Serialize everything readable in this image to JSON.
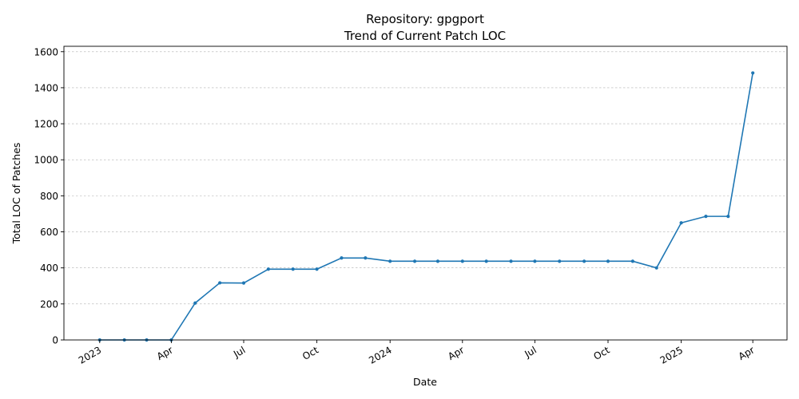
{
  "chart_data": {
    "type": "line",
    "title": "Repository: gpgport",
    "subtitle": "Trend of Current Patch LOC",
    "xlabel": "Date",
    "ylabel": "Total LOC of Patches",
    "x_ticks": [
      {
        "date": "2023-01-01",
        "label": "2023"
      },
      {
        "date": "2023-04-01",
        "label": "Apr"
      },
      {
        "date": "2023-07-01",
        "label": "Jul"
      },
      {
        "date": "2023-10-01",
        "label": "Oct"
      },
      {
        "date": "2024-01-01",
        "label": "2024"
      },
      {
        "date": "2024-04-01",
        "label": "Apr"
      },
      {
        "date": "2024-07-01",
        "label": "Jul"
      },
      {
        "date": "2024-10-01",
        "label": "Oct"
      },
      {
        "date": "2025-01-01",
        "label": "2025"
      },
      {
        "date": "2025-04-01",
        "label": "Apr"
      }
    ],
    "y_ticks": [
      0,
      200,
      400,
      600,
      800,
      1000,
      1200,
      1400,
      1600
    ],
    "xlim": [
      "2022-11-17",
      "2025-05-14"
    ],
    "ylim": [
      0,
      1630
    ],
    "grid": "y-only, dashed",
    "series": [
      {
        "color": "#1f77b4",
        "x": [
          "2023-01-01",
          "2023-02-01",
          "2023-03-01",
          "2023-04-01",
          "2023-05-01",
          "2023-06-01",
          "2023-07-01",
          "2023-08-01",
          "2023-09-01",
          "2023-10-01",
          "2023-11-01",
          "2023-12-01",
          "2024-01-01",
          "2024-02-01",
          "2024-03-01",
          "2024-04-01",
          "2024-05-01",
          "2024-06-01",
          "2024-07-01",
          "2024-08-01",
          "2024-09-01",
          "2024-10-01",
          "2024-11-01",
          "2024-12-01",
          "2025-01-01",
          "2025-02-01",
          "2025-03-01",
          "2025-04-01"
        ],
        "y": [
          0,
          0,
          0,
          0,
          205,
          317,
          316,
          393,
          393,
          393,
          455,
          455,
          437,
          437,
          437,
          437,
          437,
          437,
          437,
          437,
          437,
          437,
          437,
          400,
          650,
          686,
          686,
          1482
        ]
      }
    ]
  }
}
